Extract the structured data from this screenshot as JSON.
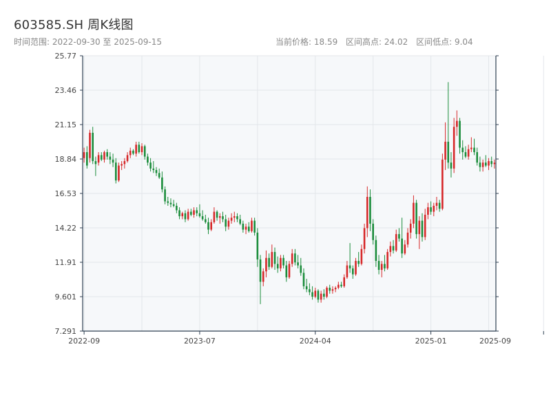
{
  "header": {
    "title": "603585.SH 周K线图",
    "range_text": "时间范围: 2022-09-30 至 2025-09-15",
    "current_price": "当前价格: 18.59",
    "range_high": "区间高点: 24.02",
    "range_low": "区间低点: 9.04"
  },
  "colors": {
    "up": "#d62728",
    "down": "#1a8c3a",
    "plot_bg": "#f6f8fa",
    "grid": "#e3e6ea",
    "axis": "#2c3e50"
  },
  "chart_data": {
    "type": "candlestick",
    "y_ticks": [
      "7.291",
      "9.601",
      "11.91",
      "14.22",
      "16.53",
      "18.84",
      "21.15",
      "23.46",
      "25.77"
    ],
    "y_tick_values": [
      7.291,
      9.601,
      11.91,
      14.22,
      16.53,
      18.84,
      21.15,
      23.46,
      25.77
    ],
    "ylim": [
      7.291,
      25.77
    ],
    "x_ticks": [
      "2022-09",
      "2023-07",
      "2024-04",
      "2025-01",
      "2025-09"
    ],
    "x_tick_week_index": [
      0,
      40,
      80,
      120,
      159
    ],
    "candles": [
      {
        "o": 18.9,
        "h": 19.6,
        "l": 18.6,
        "c": 19.3
      },
      {
        "o": 19.3,
        "h": 19.7,
        "l": 18.2,
        "c": 18.4
      },
      {
        "o": 18.9,
        "h": 20.8,
        "l": 18.6,
        "c": 20.6
      },
      {
        "o": 20.6,
        "h": 21.0,
        "l": 18.5,
        "c": 18.7
      },
      {
        "o": 18.7,
        "h": 19.0,
        "l": 17.7,
        "c": 18.5
      },
      {
        "o": 18.6,
        "h": 19.3,
        "l": 18.4,
        "c": 19.1
      },
      {
        "o": 19.1,
        "h": 19.3,
        "l": 18.7,
        "c": 18.8
      },
      {
        "o": 18.8,
        "h": 19.4,
        "l": 18.6,
        "c": 19.3
      },
      {
        "o": 19.3,
        "h": 19.5,
        "l": 18.8,
        "c": 19.0
      },
      {
        "o": 19.0,
        "h": 19.3,
        "l": 18.5,
        "c": 18.8
      },
      {
        "o": 18.8,
        "h": 19.2,
        "l": 18.3,
        "c": 18.6
      },
      {
        "o": 18.6,
        "h": 18.9,
        "l": 17.2,
        "c": 17.4
      },
      {
        "o": 17.4,
        "h": 18.6,
        "l": 17.3,
        "c": 18.4
      },
      {
        "o": 18.4,
        "h": 18.7,
        "l": 18.1,
        "c": 18.5
      },
      {
        "o": 18.5,
        "h": 18.9,
        "l": 18.2,
        "c": 18.7
      },
      {
        "o": 18.7,
        "h": 19.3,
        "l": 18.6,
        "c": 19.1
      },
      {
        "o": 19.1,
        "h": 19.6,
        "l": 18.9,
        "c": 19.4
      },
      {
        "o": 19.4,
        "h": 19.5,
        "l": 19.1,
        "c": 19.2
      },
      {
        "o": 19.2,
        "h": 20.0,
        "l": 19.0,
        "c": 19.8
      },
      {
        "o": 19.8,
        "h": 20.0,
        "l": 19.2,
        "c": 19.3
      },
      {
        "o": 19.3,
        "h": 19.9,
        "l": 19.1,
        "c": 19.7
      },
      {
        "o": 19.7,
        "h": 19.8,
        "l": 18.8,
        "c": 19.0
      },
      {
        "o": 19.0,
        "h": 19.2,
        "l": 18.4,
        "c": 18.6
      },
      {
        "o": 18.6,
        "h": 18.9,
        "l": 18.0,
        "c": 18.2
      },
      {
        "o": 18.2,
        "h": 18.7,
        "l": 17.9,
        "c": 18.1
      },
      {
        "o": 18.1,
        "h": 18.3,
        "l": 17.7,
        "c": 17.9
      },
      {
        "o": 17.9,
        "h": 18.2,
        "l": 17.5,
        "c": 17.6
      },
      {
        "o": 17.6,
        "h": 18.0,
        "l": 16.6,
        "c": 16.8
      },
      {
        "o": 16.8,
        "h": 17.0,
        "l": 15.8,
        "c": 16.0
      },
      {
        "o": 16.0,
        "h": 16.3,
        "l": 15.7,
        "c": 15.9
      },
      {
        "o": 15.9,
        "h": 16.2,
        "l": 15.6,
        "c": 15.8
      },
      {
        "o": 15.8,
        "h": 16.1,
        "l": 15.6,
        "c": 15.7
      },
      {
        "o": 15.7,
        "h": 15.9,
        "l": 15.2,
        "c": 15.4
      },
      {
        "o": 15.4,
        "h": 15.6,
        "l": 14.8,
        "c": 15.0
      },
      {
        "o": 15.0,
        "h": 15.3,
        "l": 14.8,
        "c": 15.2
      },
      {
        "o": 15.2,
        "h": 15.4,
        "l": 14.6,
        "c": 14.8
      },
      {
        "o": 14.8,
        "h": 15.5,
        "l": 14.7,
        "c": 15.3
      },
      {
        "o": 15.3,
        "h": 15.5,
        "l": 15.0,
        "c": 15.1
      },
      {
        "o": 15.1,
        "h": 15.6,
        "l": 14.9,
        "c": 15.4
      },
      {
        "o": 15.4,
        "h": 15.6,
        "l": 15.0,
        "c": 15.2
      },
      {
        "o": 15.2,
        "h": 15.8,
        "l": 14.9,
        "c": 15.0
      },
      {
        "o": 15.0,
        "h": 15.4,
        "l": 14.7,
        "c": 14.8
      },
      {
        "o": 14.8,
        "h": 15.1,
        "l": 14.5,
        "c": 14.6
      },
      {
        "o": 14.6,
        "h": 14.9,
        "l": 13.8,
        "c": 14.1
      },
      {
        "o": 14.1,
        "h": 14.8,
        "l": 14.0,
        "c": 14.6
      },
      {
        "o": 14.6,
        "h": 15.6,
        "l": 14.5,
        "c": 15.3
      },
      {
        "o": 15.3,
        "h": 15.4,
        "l": 14.7,
        "c": 14.9
      },
      {
        "o": 14.9,
        "h": 15.2,
        "l": 14.5,
        "c": 15.0
      },
      {
        "o": 15.0,
        "h": 15.3,
        "l": 14.6,
        "c": 14.8
      },
      {
        "o": 14.8,
        "h": 15.1,
        "l": 14.0,
        "c": 14.3
      },
      {
        "o": 14.3,
        "h": 14.9,
        "l": 14.1,
        "c": 14.7
      },
      {
        "o": 14.7,
        "h": 15.2,
        "l": 14.5,
        "c": 14.9
      },
      {
        "o": 14.9,
        "h": 15.3,
        "l": 14.6,
        "c": 15.0
      },
      {
        "o": 15.0,
        "h": 15.2,
        "l": 14.6,
        "c": 14.8
      },
      {
        "o": 14.8,
        "h": 15.1,
        "l": 14.4,
        "c": 14.5
      },
      {
        "o": 14.5,
        "h": 14.7,
        "l": 13.9,
        "c": 14.1
      },
      {
        "o": 14.1,
        "h": 14.5,
        "l": 13.8,
        "c": 14.3
      },
      {
        "o": 14.3,
        "h": 14.6,
        "l": 13.9,
        "c": 14.0
      },
      {
        "o": 14.0,
        "h": 14.9,
        "l": 13.9,
        "c": 14.7
      },
      {
        "o": 14.7,
        "h": 14.9,
        "l": 13.7,
        "c": 13.9
      },
      {
        "o": 13.9,
        "h": 14.2,
        "l": 11.6,
        "c": 12.1
      },
      {
        "o": 12.1,
        "h": 12.4,
        "l": 9.1,
        "c": 10.6
      },
      {
        "o": 10.6,
        "h": 11.5,
        "l": 10.3,
        "c": 11.3
      },
      {
        "o": 11.3,
        "h": 12.7,
        "l": 10.9,
        "c": 12.2
      },
      {
        "o": 12.2,
        "h": 12.5,
        "l": 11.4,
        "c": 11.6
      },
      {
        "o": 11.6,
        "h": 13.1,
        "l": 11.5,
        "c": 12.6
      },
      {
        "o": 12.6,
        "h": 12.9,
        "l": 11.4,
        "c": 11.8
      },
      {
        "o": 11.8,
        "h": 12.3,
        "l": 11.2,
        "c": 11.5
      },
      {
        "o": 11.5,
        "h": 12.4,
        "l": 11.3,
        "c": 12.2
      },
      {
        "o": 12.2,
        "h": 12.4,
        "l": 11.5,
        "c": 11.7
      },
      {
        "o": 11.7,
        "h": 12.0,
        "l": 10.6,
        "c": 10.9
      },
      {
        "o": 10.9,
        "h": 12.0,
        "l": 10.8,
        "c": 11.8
      },
      {
        "o": 11.8,
        "h": 12.8,
        "l": 11.6,
        "c": 12.5
      },
      {
        "o": 12.5,
        "h": 12.8,
        "l": 11.7,
        "c": 11.9
      },
      {
        "o": 11.9,
        "h": 12.4,
        "l": 11.5,
        "c": 11.7
      },
      {
        "o": 11.7,
        "h": 12.2,
        "l": 11.0,
        "c": 11.2
      },
      {
        "o": 11.2,
        "h": 11.5,
        "l": 10.1,
        "c": 10.3
      },
      {
        "o": 10.3,
        "h": 10.8,
        "l": 9.9,
        "c": 10.1
      },
      {
        "o": 10.1,
        "h": 10.5,
        "l": 9.7,
        "c": 9.9
      },
      {
        "o": 9.9,
        "h": 10.3,
        "l": 9.4,
        "c": 9.6
      },
      {
        "o": 9.6,
        "h": 10.2,
        "l": 9.5,
        "c": 10.0
      },
      {
        "o": 10.0,
        "h": 10.1,
        "l": 9.2,
        "c": 9.4
      },
      {
        "o": 9.4,
        "h": 10.0,
        "l": 9.2,
        "c": 9.8
      },
      {
        "o": 9.8,
        "h": 10.1,
        "l": 9.4,
        "c": 9.6
      },
      {
        "o": 9.6,
        "h": 10.3,
        "l": 9.5,
        "c": 10.2
      },
      {
        "o": 10.2,
        "h": 10.4,
        "l": 9.8,
        "c": 10.0
      },
      {
        "o": 10.0,
        "h": 10.3,
        "l": 9.8,
        "c": 10.1
      },
      {
        "o": 10.1,
        "h": 10.3,
        "l": 9.9,
        "c": 10.2
      },
      {
        "o": 10.2,
        "h": 10.6,
        "l": 10.1,
        "c": 10.4
      },
      {
        "o": 10.4,
        "h": 10.6,
        "l": 10.2,
        "c": 10.3
      },
      {
        "o": 10.3,
        "h": 11.1,
        "l": 10.2,
        "c": 10.9
      },
      {
        "o": 10.9,
        "h": 12.0,
        "l": 10.8,
        "c": 11.7
      },
      {
        "o": 11.7,
        "h": 13.2,
        "l": 11.2,
        "c": 11.5
      },
      {
        "o": 11.5,
        "h": 11.7,
        "l": 10.8,
        "c": 11.1
      },
      {
        "o": 11.1,
        "h": 12.2,
        "l": 11.0,
        "c": 12.0
      },
      {
        "o": 12.0,
        "h": 12.6,
        "l": 11.6,
        "c": 11.8
      },
      {
        "o": 11.8,
        "h": 13.1,
        "l": 11.7,
        "c": 12.8
      },
      {
        "o": 12.8,
        "h": 14.5,
        "l": 12.5,
        "c": 14.2
      },
      {
        "o": 14.2,
        "h": 17.0,
        "l": 13.6,
        "c": 16.3
      },
      {
        "o": 16.3,
        "h": 16.8,
        "l": 14.0,
        "c": 14.5
      },
      {
        "o": 14.5,
        "h": 14.8,
        "l": 13.1,
        "c": 13.4
      },
      {
        "o": 13.4,
        "h": 13.7,
        "l": 11.6,
        "c": 12.0
      },
      {
        "o": 12.0,
        "h": 12.4,
        "l": 11.1,
        "c": 11.4
      },
      {
        "o": 11.4,
        "h": 12.0,
        "l": 10.9,
        "c": 11.8
      },
      {
        "o": 11.8,
        "h": 12.4,
        "l": 11.3,
        "c": 11.5
      },
      {
        "o": 11.5,
        "h": 12.8,
        "l": 11.4,
        "c": 12.6
      },
      {
        "o": 12.6,
        "h": 13.3,
        "l": 12.3,
        "c": 13.0
      },
      {
        "o": 13.0,
        "h": 13.4,
        "l": 12.5,
        "c": 12.7
      },
      {
        "o": 12.7,
        "h": 14.1,
        "l": 12.6,
        "c": 13.8
      },
      {
        "o": 13.8,
        "h": 14.2,
        "l": 13.3,
        "c": 13.5
      },
      {
        "o": 13.5,
        "h": 14.9,
        "l": 12.2,
        "c": 12.5
      },
      {
        "o": 12.5,
        "h": 13.4,
        "l": 12.4,
        "c": 13.1
      },
      {
        "o": 13.1,
        "h": 14.2,
        "l": 12.9,
        "c": 13.9
      },
      {
        "o": 13.9,
        "h": 14.8,
        "l": 13.5,
        "c": 14.5
      },
      {
        "o": 14.5,
        "h": 16.4,
        "l": 14.2,
        "c": 15.9
      },
      {
        "o": 15.9,
        "h": 16.1,
        "l": 13.5,
        "c": 13.8
      },
      {
        "o": 13.8,
        "h": 15.0,
        "l": 12.8,
        "c": 14.7
      },
      {
        "o": 14.7,
        "h": 15.2,
        "l": 13.3,
        "c": 13.6
      },
      {
        "o": 13.6,
        "h": 15.5,
        "l": 13.4,
        "c": 15.1
      },
      {
        "o": 15.1,
        "h": 15.9,
        "l": 14.8,
        "c": 15.6
      },
      {
        "o": 15.6,
        "h": 16.0,
        "l": 15.1,
        "c": 15.3
      },
      {
        "o": 15.3,
        "h": 15.9,
        "l": 15.0,
        "c": 15.7
      },
      {
        "o": 15.7,
        "h": 16.3,
        "l": 15.4,
        "c": 15.9
      },
      {
        "o": 15.9,
        "h": 16.1,
        "l": 15.3,
        "c": 15.5
      },
      {
        "o": 15.5,
        "h": 19.2,
        "l": 15.4,
        "c": 18.8
      },
      {
        "o": 18.8,
        "h": 21.3,
        "l": 18.1,
        "c": 20.0
      },
      {
        "o": 20.0,
        "h": 24.0,
        "l": 18.2,
        "c": 18.6
      },
      {
        "o": 18.6,
        "h": 19.3,
        "l": 17.6,
        "c": 18.2
      },
      {
        "o": 18.2,
        "h": 21.6,
        "l": 17.9,
        "c": 21.0
      },
      {
        "o": 21.0,
        "h": 22.1,
        "l": 20.4,
        "c": 21.4
      },
      {
        "o": 21.4,
        "h": 21.6,
        "l": 19.2,
        "c": 19.6
      },
      {
        "o": 19.6,
        "h": 20.1,
        "l": 18.8,
        "c": 19.3
      },
      {
        "o": 19.3,
        "h": 19.7,
        "l": 18.9,
        "c": 19.0
      },
      {
        "o": 19.0,
        "h": 19.8,
        "l": 18.8,
        "c": 19.5
      },
      {
        "o": 19.5,
        "h": 20.3,
        "l": 19.3,
        "c": 19.6
      },
      {
        "o": 19.6,
        "h": 20.2,
        "l": 19.1,
        "c": 19.3
      },
      {
        "o": 19.3,
        "h": 19.6,
        "l": 18.4,
        "c": 18.6
      },
      {
        "o": 18.6,
        "h": 19.0,
        "l": 18.0,
        "c": 18.3
      },
      {
        "o": 18.3,
        "h": 18.8,
        "l": 18.0,
        "c": 18.6
      },
      {
        "o": 18.6,
        "h": 19.1,
        "l": 18.3,
        "c": 18.4
      },
      {
        "o": 18.4,
        "h": 18.9,
        "l": 18.1,
        "c": 18.7
      },
      {
        "o": 18.7,
        "h": 19.0,
        "l": 18.3,
        "c": 18.5
      },
      {
        "o": 18.5,
        "h": 18.8,
        "l": 18.2,
        "c": 18.59
      }
    ]
  }
}
